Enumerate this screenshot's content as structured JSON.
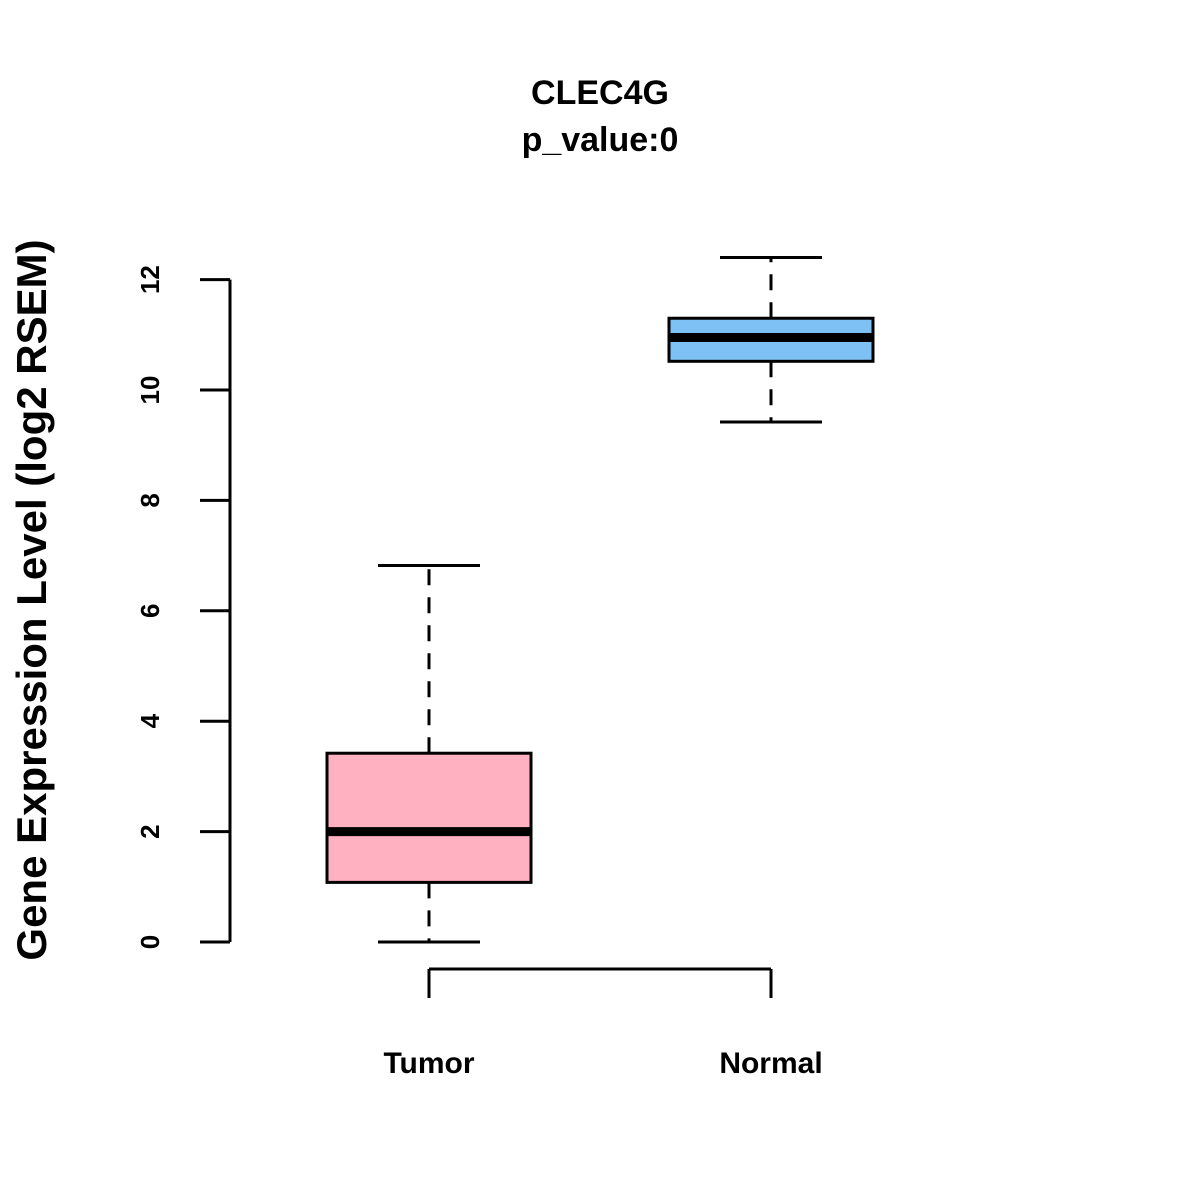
{
  "chart_data": {
    "type": "box",
    "title": "CLEC4G",
    "subtitle": "p_value:0",
    "xlabel": "",
    "ylabel": "Gene Expression Level (log2 RSEM)",
    "ylim": [
      0,
      12.5
    ],
    "yticks": [
      0,
      2,
      4,
      6,
      8,
      10,
      12
    ],
    "categories": [
      "Tumor",
      "Normal"
    ],
    "boxes": [
      {
        "name": "Tumor",
        "whisker_low": 0.0,
        "q1": 1.08,
        "median": 2.0,
        "q3": 3.42,
        "whisker_high": 6.82,
        "color": "#FFB0C1"
      },
      {
        "name": "Normal",
        "whisker_low": 9.42,
        "q1": 10.52,
        "median": 10.95,
        "q3": 11.3,
        "whisker_high": 12.4,
        "color": "#7EC1F5"
      }
    ]
  }
}
